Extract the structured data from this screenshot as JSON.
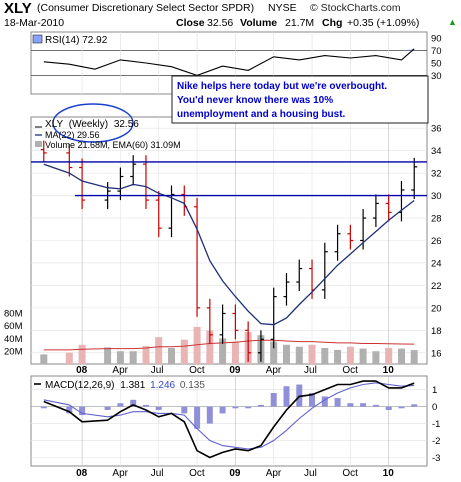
{
  "header": {
    "symbol": "XLY",
    "name": "(Consumer Discretionary Select Sector SPDR)",
    "exchange": "NYSE",
    "date": "18-Mar-2010",
    "close_label": "Close",
    "close_value": "32.56",
    "volume_label": "Volume",
    "volume_value": "21.7M",
    "chg_label": "Chg",
    "chg_value": "+0.35 (+1.09%)",
    "chg_arrow": "▲",
    "brand": "© StockCharts.com"
  },
  "annotation": {
    "lines": [
      "Nike helps here today but we're overbought.",
      " You'd never know there was 10%",
      "unemployment and a housing bust."
    ]
  },
  "colors": {
    "price_up": "#000000",
    "price_down": "#cc0000",
    "ma": "#1f2f7a",
    "ema": "#cc3333",
    "volume_up": "#b0b0b0",
    "volume_down": "#e8b4b4",
    "resistance": "#0000aa",
    "rsi_fill": "#8aa2ff",
    "macd": "#000000",
    "signal": "#6060d0",
    "histogram": "#9090d8",
    "annotation_text": "#0000cc",
    "circle": "#1a3fcf"
  },
  "chart_data": [
    {
      "type": "line",
      "panel": "rsi",
      "legend": "RSI(14) 72.92",
      "ylim": [
        0,
        100
      ],
      "reference_lines": [
        30,
        70
      ],
      "yticks": [
        30,
        50,
        70,
        90
      ],
      "x": [
        "2007-10",
        "2007-12",
        "2008-02",
        "2008-04",
        "2008-06",
        "2008-08",
        "2008-10",
        "2008-12",
        "2009-02",
        "2009-04",
        "2009-06",
        "2009-08",
        "2009-10",
        "2009-12",
        "2010-02",
        "2010-03"
      ],
      "values": [
        52,
        48,
        40,
        55,
        50,
        44,
        30,
        45,
        38,
        60,
        55,
        62,
        58,
        62,
        55,
        72.92
      ]
    },
    {
      "type": "line",
      "panel": "price",
      "legend_symbol": "XLY",
      "legend_period": "(Weekly)",
      "legend_value": "32.56",
      "legend_ma": "MA(22) 29.56",
      "legend_volume": "Volume 21.68M, EMA(60) 31.09M",
      "ylim": [
        15,
        37
      ],
      "yticks": [
        16,
        18,
        20,
        22,
        24,
        26,
        28,
        30,
        32,
        34,
        36
      ],
      "xticks": [
        "08",
        "Apr",
        "Jul",
        "Oct",
        "09",
        "Apr",
        "Jul",
        "Oct",
        "10"
      ],
      "resistance_levels": [
        33,
        30
      ],
      "x": [
        "2007-10",
        "2007-12",
        "2008-01",
        "2008-03",
        "2008-04",
        "2008-05",
        "2008-06",
        "2008-07",
        "2008-08",
        "2008-09",
        "2008-10",
        "2008-11",
        "2008-12",
        "2009-01",
        "2009-02",
        "2009-03",
        "2009-04",
        "2009-05",
        "2009-06",
        "2009-07",
        "2009-08",
        "2009-09",
        "2009-10",
        "2009-11",
        "2009-12",
        "2010-01",
        "2010-02",
        "2010-03"
      ],
      "close": [
        33.8,
        32.5,
        29.6,
        30.4,
        31.7,
        32.8,
        29.6,
        27.1,
        30.1,
        29.0,
        20.0,
        17.6,
        19.5,
        18.0,
        16.0,
        17.2,
        21.0,
        22.3,
        23.5,
        21.6,
        25.0,
        26.6,
        26.0,
        28.0,
        29.3,
        28.5,
        30.5,
        32.56
      ],
      "ma": [
        32.8,
        32.0,
        31.3,
        30.7,
        30.6,
        31.0,
        30.8,
        30.2,
        29.8,
        29.3,
        27.0,
        24.2,
        22.4,
        21.0,
        19.7,
        18.6,
        18.5,
        19.1,
        20.3,
        21.4,
        22.6,
        23.8,
        24.8,
        25.8,
        26.8,
        27.8,
        28.7,
        29.56
      ],
      "volume_ylim": [
        0,
        100
      ],
      "volume_yticks": [
        "20M",
        "40M",
        "60M",
        "80M"
      ],
      "volume": [
        15,
        18,
        30,
        26,
        20,
        20,
        28,
        42,
        25,
        38,
        58,
        52,
        40,
        35,
        50,
        45,
        35,
        30,
        27,
        30,
        25,
        22,
        27,
        24,
        20,
        25,
        24,
        21.68
      ],
      "volume_ema": [
        22,
        22,
        23,
        24,
        24,
        24,
        25,
        27,
        27,
        28,
        30,
        32,
        33,
        34,
        36,
        37,
        37,
        36,
        35,
        35,
        34,
        33,
        33,
        32,
        32,
        31.5,
        31.2,
        31.09
      ]
    },
    {
      "type": "line",
      "panel": "macd",
      "legend_name": "MACD(12,26,9)",
      "legend_macd": "1.381",
      "legend_signal": "1.246",
      "legend_hist": "0.135",
      "ylim": [
        -3.5,
        1.8
      ],
      "yticks": [
        1,
        0,
        -1,
        -2,
        -3
      ],
      "xticks": [
        "08",
        "Apr",
        "Jul",
        "Oct",
        "09",
        "Apr",
        "Jul",
        "Oct",
        "10"
      ],
      "x": [
        "2007-10",
        "2007-12",
        "2008-01",
        "2008-03",
        "2008-04",
        "2008-05",
        "2008-06",
        "2008-07",
        "2008-08",
        "2008-09",
        "2008-10",
        "2008-11",
        "2008-12",
        "2009-01",
        "2009-02",
        "2009-03",
        "2009-04",
        "2009-05",
        "2009-06",
        "2009-07",
        "2009-08",
        "2009-09",
        "2009-10",
        "2009-11",
        "2009-12",
        "2010-01",
        "2010-02",
        "2010-03"
      ],
      "macd": [
        0.3,
        -0.3,
        -0.9,
        -0.8,
        -0.3,
        0.1,
        -0.2,
        -0.6,
        -0.4,
        -0.9,
        -2.6,
        -3.0,
        -2.7,
        -2.5,
        -2.6,
        -2.3,
        -1.2,
        -0.2,
        0.6,
        0.7,
        1.0,
        1.3,
        1.3,
        1.5,
        1.5,
        1.1,
        1.1,
        1.381
      ],
      "signal": [
        0.4,
        0.1,
        -0.4,
        -0.6,
        -0.5,
        -0.3,
        -0.3,
        -0.4,
        -0.4,
        -0.5,
        -1.3,
        -2.0,
        -2.3,
        -2.4,
        -2.5,
        -2.4,
        -2.0,
        -1.4,
        -0.7,
        -0.1,
        0.4,
        0.8,
        1.1,
        1.3,
        1.4,
        1.3,
        1.2,
        1.246
      ]
    }
  ]
}
